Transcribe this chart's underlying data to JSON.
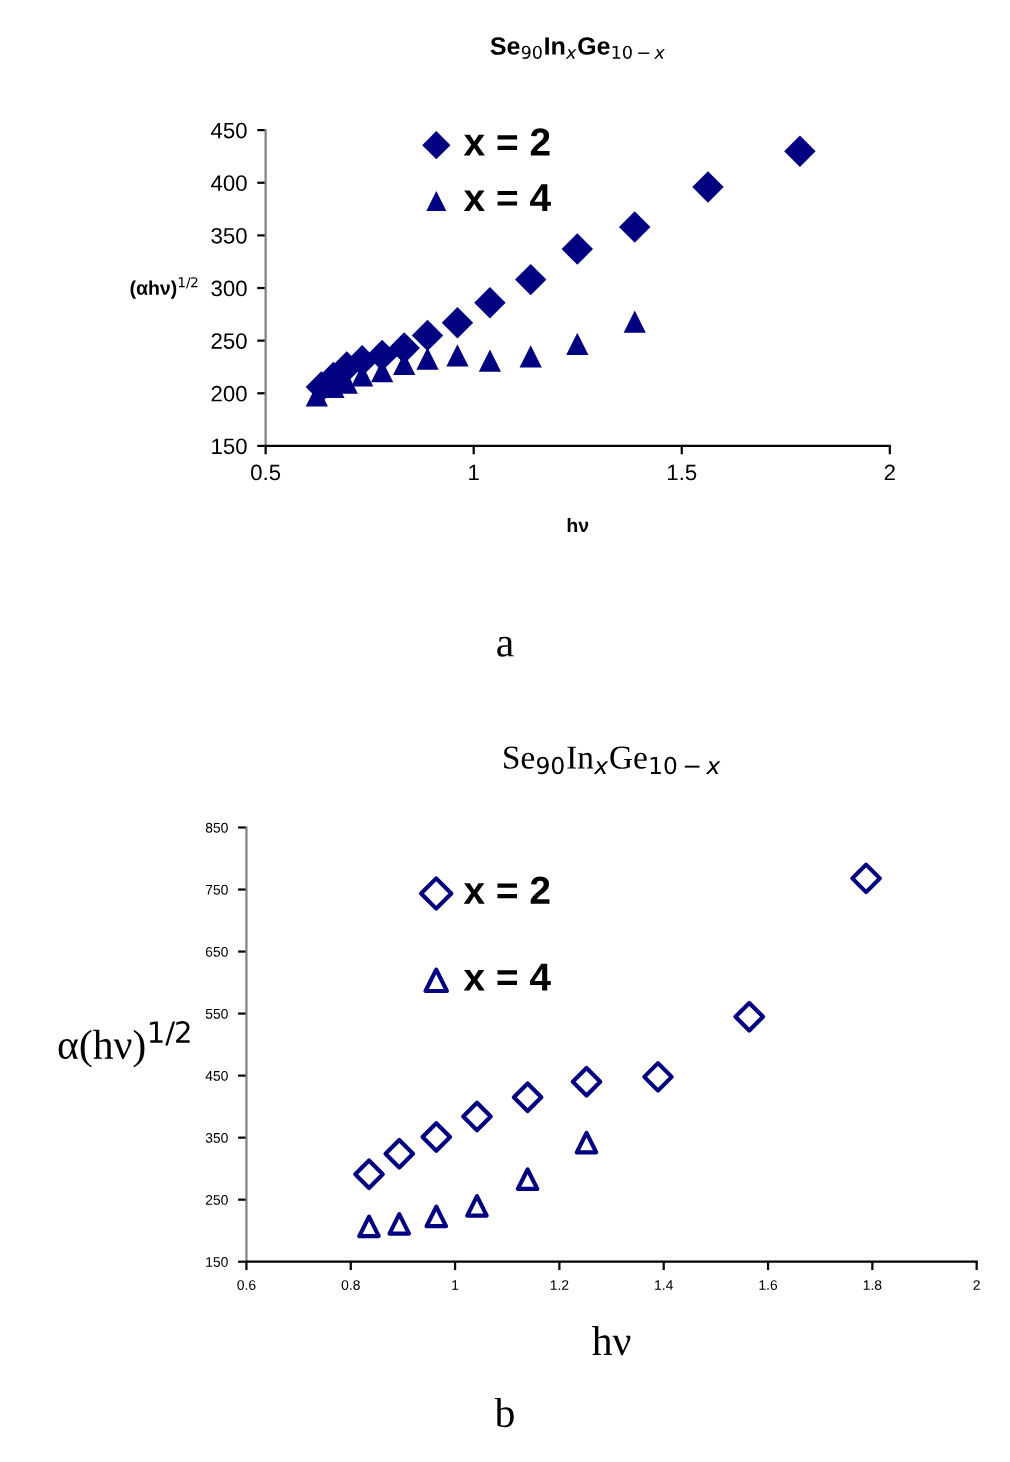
{
  "chart_data": [
    {
      "type": "scatter",
      "title": "Se$_{90}$In$_{x}$Ge$_{10−x}$",
      "xlabel": "hν",
      "ylabel": "(αhν)$^{1/2}$",
      "annotations": [
        "a"
      ],
      "xlim": [
        0.5,
        2
      ],
      "xticks": [
        0.5,
        1,
        1.5,
        2
      ],
      "ylim": [
        150,
        450
      ],
      "yticks": [
        150,
        200,
        250,
        300,
        350,
        400,
        450
      ],
      "grid": false,
      "legend": "top left",
      "series": [
        {
          "name": "x = 2",
          "color": "#000080",
          "marker": "diamond",
          "x": [
            1.784,
            1.563,
            1.387,
            1.249,
            1.137,
            1.039,
            0.961,
            0.889,
            0.833,
            0.78,
            0.732,
            0.695,
            0.663,
            0.634
          ],
          "values": [
            430,
            396,
            358,
            337,
            308,
            286,
            267,
            255,
            243,
            236,
            231,
            225,
            215,
            206
          ]
        },
        {
          "name": "x = 4",
          "color": "#000080",
          "marker": "triangle",
          "x": [
            1.387,
            1.249,
            1.137,
            1.039,
            0.961,
            0.889,
            0.833,
            0.78,
            0.732,
            0.695,
            0.663,
            0.623
          ],
          "values": [
            268,
            247,
            235,
            231,
            236,
            233,
            228,
            221,
            217,
            210,
            206,
            198
          ]
        }
      ]
    },
    {
      "type": "scatter",
      "title": "Se$_{90}$In$_{x}$Ge$_{10−x}$",
      "xlabel": "hν",
      "ylabel": "α(hν)$^{1/2}$",
      "annotations": [
        "b"
      ],
      "xlim": [
        0.6,
        2
      ],
      "xticks": [
        0.6,
        0.8,
        1,
        1.2,
        1.4,
        1.6,
        1.8,
        2
      ],
      "ylim": [
        150,
        850
      ],
      "yticks": [
        150,
        250,
        350,
        450,
        550,
        650,
        750,
        850
      ],
      "grid": false,
      "legend": "top left",
      "series": [
        {
          "name": "x = 2",
          "color": "#000080",
          "marker": "diamond",
          "x": [
            0.835,
            0.893,
            0.964,
            1.042,
            1.139,
            1.252,
            1.389,
            1.564,
            1.788
          ],
          "values": [
            291,
            324,
            351,
            384,
            415,
            440,
            448,
            545,
            768
          ]
        },
        {
          "name": "x = 4",
          "color": "#000080",
          "marker": "triangle",
          "x": [
            0.835,
            0.893,
            0.964,
            1.042,
            1.139,
            1.252
          ],
          "values": [
            207,
            211,
            223,
            240,
            283,
            342
          ]
        }
      ]
    }
  ]
}
